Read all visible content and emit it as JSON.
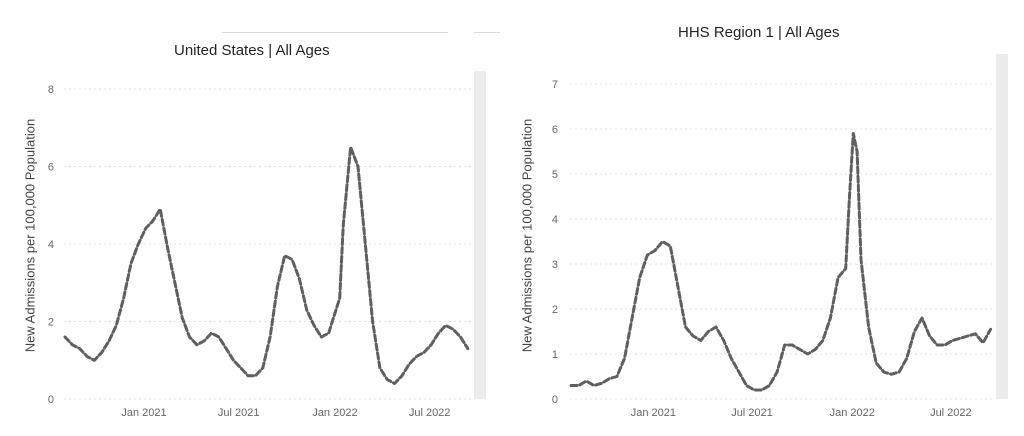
{
  "colors": {
    "series": "#5f5f5f",
    "grid": "#e3e3e3",
    "text": "#252423"
  },
  "chart_data": [
    {
      "type": "line",
      "title": "United States | All Ages",
      "xlabel": "",
      "ylabel": "New Admissions per 100,000 Population",
      "ylim": [
        0,
        8
      ],
      "yticks": [
        "0",
        "2",
        "4",
        "6",
        "8"
      ],
      "xticks": [
        "Jan 2021",
        "Jul 2021",
        "Jan 2022",
        "Jul 2022"
      ],
      "grid": true,
      "series": [
        {
          "x": [
            "2020-08-03",
            "2020-08-17",
            "2020-08-31",
            "2020-09-14",
            "2020-09-28",
            "2020-10-12",
            "2020-10-26",
            "2020-11-09",
            "2020-11-23",
            "2020-12-07",
            "2020-12-21",
            "2021-01-04",
            "2021-01-18",
            "2021-02-01",
            "2021-02-15",
            "2021-03-01",
            "2021-03-15",
            "2021-03-29",
            "2021-04-12",
            "2021-04-26",
            "2021-05-10",
            "2021-05-24",
            "2021-06-07",
            "2021-06-21",
            "2021-07-05",
            "2021-07-19",
            "2021-08-02",
            "2021-08-16",
            "2021-08-30",
            "2021-09-13",
            "2021-09-27",
            "2021-10-11",
            "2021-10-25",
            "2021-11-08",
            "2021-11-22",
            "2021-12-06",
            "2021-12-20",
            "2021-12-27",
            "2022-01-03",
            "2022-01-10",
            "2022-01-17",
            "2022-01-31",
            "2022-02-14",
            "2022-02-28",
            "2022-03-14",
            "2022-03-28",
            "2022-04-11",
            "2022-04-25",
            "2022-05-09",
            "2022-05-23",
            "2022-06-06",
            "2022-06-20",
            "2022-07-04",
            "2022-07-18",
            "2022-08-01",
            "2022-08-15",
            "2022-08-29",
            "2022-09-12"
          ],
          "values": [
            1.6,
            1.4,
            1.3,
            1.1,
            1.0,
            1.2,
            1.5,
            1.9,
            2.6,
            3.5,
            4.0,
            4.4,
            4.6,
            4.9,
            3.9,
            3.0,
            2.1,
            1.6,
            1.4,
            1.5,
            1.7,
            1.6,
            1.3,
            1.0,
            0.8,
            0.6,
            0.6,
            0.8,
            1.6,
            2.9,
            3.7,
            3.6,
            3.1,
            2.3,
            1.9,
            1.6,
            1.7,
            2.0,
            2.3,
            2.6,
            4.5,
            6.5,
            6.0,
            4.0,
            2.0,
            0.8,
            0.5,
            0.4,
            0.6,
            0.9,
            1.1,
            1.2,
            1.4,
            1.7,
            1.9,
            1.8,
            1.6,
            1.3
          ]
        }
      ]
    },
    {
      "type": "line",
      "title": "HHS Region 1 | All Ages",
      "xlabel": "",
      "ylabel": "New Admissions per 100,000 Population",
      "ylim": [
        0,
        7
      ],
      "yticks": [
        "0",
        "1",
        "2",
        "3",
        "4",
        "5",
        "6",
        "7"
      ],
      "xticks": [
        "Jan 2021",
        "Jul 2021",
        "Jan 2022",
        "Jul 2022"
      ],
      "grid": true,
      "series": [
        {
          "x": [
            "2020-08-03",
            "2020-08-17",
            "2020-08-31",
            "2020-09-14",
            "2020-09-28",
            "2020-10-12",
            "2020-10-26",
            "2020-11-09",
            "2020-11-23",
            "2020-12-07",
            "2020-12-21",
            "2021-01-04",
            "2021-01-18",
            "2021-02-01",
            "2021-02-15",
            "2021-03-01",
            "2021-03-15",
            "2021-03-29",
            "2021-04-12",
            "2021-04-26",
            "2021-05-10",
            "2021-05-24",
            "2021-06-07",
            "2021-06-21",
            "2021-07-05",
            "2021-07-19",
            "2021-08-02",
            "2021-08-16",
            "2021-08-30",
            "2021-09-13",
            "2021-09-27",
            "2021-10-11",
            "2021-10-25",
            "2021-11-08",
            "2021-11-22",
            "2021-12-06",
            "2021-12-20",
            "2021-12-27",
            "2022-01-03",
            "2022-01-10",
            "2022-01-17",
            "2022-01-31",
            "2022-02-14",
            "2022-02-28",
            "2022-03-14",
            "2022-03-28",
            "2022-04-11",
            "2022-04-25",
            "2022-05-09",
            "2022-05-23",
            "2022-06-06",
            "2022-06-20",
            "2022-07-04",
            "2022-07-18",
            "2022-08-01",
            "2022-08-15",
            "2022-08-29",
            "2022-09-12"
          ],
          "values": [
            0.3,
            0.3,
            0.4,
            0.3,
            0.35,
            0.45,
            0.5,
            0.9,
            1.8,
            2.7,
            3.2,
            3.3,
            3.5,
            3.4,
            2.5,
            1.6,
            1.4,
            1.3,
            1.5,
            1.6,
            1.3,
            0.9,
            0.6,
            0.3,
            0.2,
            0.2,
            0.3,
            0.6,
            1.2,
            1.2,
            1.1,
            1.0,
            1.1,
            1.3,
            1.8,
            2.7,
            2.9,
            4.5,
            5.9,
            5.5,
            3.1,
            1.6,
            0.8,
            0.6,
            0.55,
            0.6,
            0.9,
            1.5,
            1.8,
            1.4,
            1.2,
            1.2,
            1.3,
            1.35,
            1.4,
            1.45,
            1.25,
            1.55
          ]
        }
      ]
    }
  ]
}
